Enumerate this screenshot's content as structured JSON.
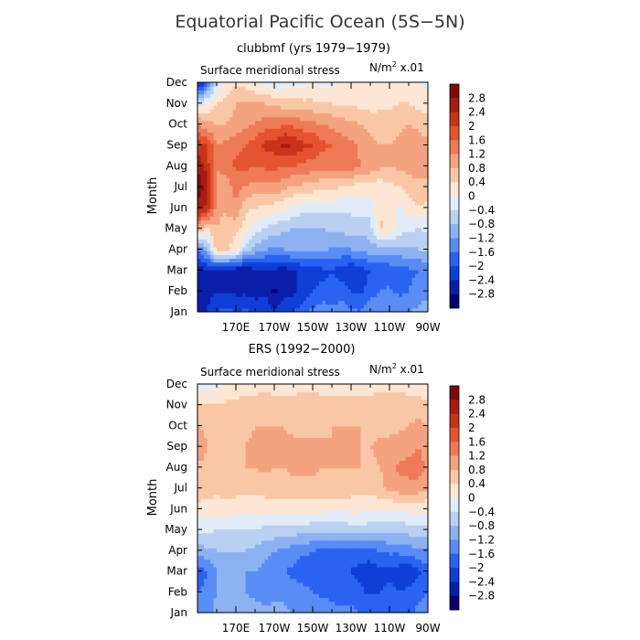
{
  "figure": {
    "title": "Equatorial Pacific Ocean (5S−5N)"
  },
  "colors": {
    "levels": [
      "#08006e",
      "#0a1fa8",
      "#0f3fd6",
      "#2a62f2",
      "#5a8cf5",
      "#8db2f2",
      "#b9d0f2",
      "#e2ecf8",
      "#fde7d4",
      "#f9c7a6",
      "#f4a37f",
      "#ef7a57",
      "#e5532f",
      "#c9331a",
      "#a51d12",
      "#7a0c0c"
    ]
  },
  "chart_data": [
    {
      "type": "heatmap",
      "subtitle": "clubbmf (yrs 1979−1979)",
      "variable_label": "Surface meridional stress",
      "units_prefix": "N/m",
      "units_sup": "2",
      "units_suffix": " x.01",
      "ylabel": "Month",
      "months": [
        "Jan",
        "Feb",
        "Mar",
        "Apr",
        "May",
        "Jun",
        "Jul",
        "Aug",
        "Sep",
        "Oct",
        "Nov",
        "Dec"
      ],
      "lon_range": [
        150,
        270
      ],
      "lon_ticks": [
        170,
        190,
        210,
        230,
        250,
        270
      ],
      "lon_tick_labels": [
        "170E",
        "170W",
        "150W",
        "130W",
        "110W",
        "90W"
      ],
      "colorbar_labels": [
        "2.8",
        "2.4",
        "2",
        "1.6",
        "1.2",
        "0.8",
        "0.4",
        "0",
        "−0.4",
        "−0.8",
        "−1.2",
        "−1.6",
        "−2",
        "−2.4",
        "−2.8"
      ],
      "levels": [
        -3.2,
        -2.8,
        -2.4,
        -2.0,
        -1.6,
        -1.2,
        -0.8,
        -0.4,
        0,
        0.4,
        0.8,
        1.2,
        1.6,
        2.0,
        2.4,
        2.8,
        3.2
      ],
      "lon": [
        150,
        155,
        160,
        165,
        170,
        175,
        180,
        185,
        190,
        195,
        200,
        205,
        210,
        215,
        220,
        225,
        230,
        235,
        240,
        245,
        250,
        255,
        260,
        265,
        270
      ],
      "values": [
        [
          -2.6,
          -2.4,
          -2.0,
          -1.9,
          -2.0,
          -1.9,
          -2.1,
          -2.0,
          -2.3,
          -2.0,
          -2.0,
          -1.7,
          -1.5,
          -1.3,
          -1.5,
          -1.3,
          -1.5,
          -1.6,
          -1.3,
          -1.2,
          -1.2,
          -1.3,
          -1.2,
          -1.1,
          -1.0
        ],
        [
          -2.8,
          -2.6,
          -2.4,
          -2.4,
          -2.5,
          -2.5,
          -2.6,
          -2.5,
          -2.9,
          -2.6,
          -2.5,
          -2.3,
          -2.0,
          -1.9,
          -1.9,
          -1.8,
          -2.0,
          -2.1,
          -1.8,
          -1.6,
          -1.5,
          -1.7,
          -1.6,
          -1.4,
          -1.3
        ],
        [
          -2.6,
          -2.5,
          -2.5,
          -2.6,
          -2.7,
          -2.7,
          -2.5,
          -2.4,
          -2.5,
          -2.6,
          -2.5,
          -2.3,
          -2.2,
          -2.1,
          -2.0,
          -2.2,
          -2.4,
          -2.2,
          -2.0,
          -1.9,
          -1.9,
          -1.8,
          -1.7,
          -1.6,
          -1.5
        ],
        [
          -1.6,
          -1.0,
          0.6,
          0.5,
          0.2,
          -0.6,
          -1.0,
          -1.2,
          -1.3,
          -1.2,
          -1.1,
          -1.2,
          -1.2,
          -1.1,
          -1.3,
          -1.3,
          -1.2,
          -1.1,
          -1.0,
          -1.0,
          -0.9,
          -0.9,
          -0.9,
          -0.8,
          -0.8
        ],
        [
          0.8,
          0.4,
          0.8,
          0.5,
          0.5,
          0.2,
          -0.2,
          -0.4,
          -0.6,
          -0.7,
          -0.8,
          -0.9,
          -0.8,
          -0.8,
          -0.7,
          -0.7,
          -0.6,
          -0.7,
          -0.6,
          0.5,
          0.3,
          -0.2,
          -0.3,
          -0.4,
          -0.3
        ],
        [
          2.7,
          2.3,
          1.0,
          0.9,
          1.2,
          0.5,
          0.4,
          0.3,
          0.2,
          0.1,
          -0.1,
          -0.2,
          -0.3,
          -0.3,
          -0.3,
          -0.3,
          -0.3,
          -0.2,
          -0.2,
          0.3,
          0.2,
          -0.1,
          0.3,
          0.4,
          0.3
        ],
        [
          3.1,
          2.6,
          1.1,
          1.0,
          1.3,
          1.2,
          1.0,
          1.0,
          1.1,
          0.9,
          0.7,
          0.7,
          0.6,
          0.5,
          0.5,
          0.4,
          0.3,
          0.2,
          0.2,
          0.1,
          0.3,
          0.4,
          0.5,
          0.6,
          0.6
        ],
        [
          2.7,
          2.2,
          1.2,
          1.4,
          1.7,
          1.7,
          1.6,
          1.7,
          1.7,
          1.6,
          1.6,
          1.5,
          1.4,
          1.3,
          1.3,
          1.4,
          1.4,
          1.2,
          1.1,
          0.9,
          0.8,
          0.9,
          1.0,
          1.1,
          1.0
        ],
        [
          2.3,
          2.0,
          1.2,
          1.3,
          1.5,
          1.6,
          1.8,
          2.1,
          2.2,
          2.5,
          2.4,
          2.1,
          2.0,
          1.7,
          1.6,
          1.4,
          1.3,
          1.1,
          0.9,
          0.8,
          0.8,
          0.9,
          1.1,
          1.0,
          0.9
        ],
        [
          1.2,
          0.9,
          0.8,
          0.8,
          0.9,
          1.1,
          1.2,
          1.4,
          1.4,
          1.6,
          1.5,
          1.4,
          1.3,
          1.2,
          1.1,
          1.0,
          0.9,
          0.8,
          0.7,
          0.6,
          0.6,
          0.7,
          0.8,
          0.7,
          0.6
        ],
        [
          -0.2,
          0.0,
          0.4,
          0.6,
          0.8,
          0.9,
          0.9,
          0.8,
          0.7,
          0.6,
          0.6,
          0.5,
          0.5,
          0.4,
          0.4,
          0.3,
          0.3,
          0.3,
          0.2,
          0.3,
          0.3,
          0.4,
          0.4,
          0.3,
          0.2
        ],
        [
          -2.8,
          -1.6,
          -0.4,
          0.1,
          0.3,
          0.2,
          0.0,
          -0.1,
          -0.3,
          -0.2,
          -0.2,
          -0.1,
          0.0,
          -0.1,
          -0.1,
          0.0,
          0.1,
          0.1,
          0.1,
          0.2,
          0.2,
          0.1,
          0.1,
          0.0,
          -0.1
        ]
      ]
    },
    {
      "type": "heatmap",
      "subtitle": "ERS (1992−2000)",
      "variable_label": "Surface meridional stress",
      "units_prefix": "N/m",
      "units_sup": "2",
      "units_suffix": " x.01",
      "ylabel": "Month",
      "months": [
        "Jan",
        "Feb",
        "Mar",
        "Apr",
        "May",
        "Jun",
        "Jul",
        "Aug",
        "Sep",
        "Oct",
        "Nov",
        "Dec"
      ],
      "lon_range": [
        150,
        270
      ],
      "lon_ticks": [
        170,
        190,
        210,
        230,
        250,
        270
      ],
      "lon_tick_labels": [
        "170E",
        "170W",
        "150W",
        "130W",
        "110W",
        "90W"
      ],
      "colorbar_labels": [
        "2.8",
        "2.4",
        "2",
        "1.6",
        "1.2",
        "0.8",
        "0.4",
        "0",
        "−0.4",
        "−0.8",
        "−1.2",
        "−1.6",
        "−2",
        "−2.4",
        "−2.8"
      ],
      "levels": [
        -3.2,
        -2.8,
        -2.4,
        -2.0,
        -1.6,
        -1.2,
        -0.8,
        -0.4,
        0,
        0.4,
        0.8,
        1.2,
        1.6,
        2.0,
        2.4,
        2.8,
        3.2
      ],
      "lon": [
        150,
        155,
        160,
        165,
        170,
        175,
        180,
        185,
        190,
        195,
        200,
        205,
        210,
        215,
        220,
        225,
        230,
        235,
        240,
        245,
        250,
        255,
        260,
        265,
        270
      ],
      "values": [
        [
          -1.3,
          -1.4,
          -1.0,
          -1.0,
          -1.1,
          -1.1,
          -1.0,
          -1.1,
          -1.0,
          -1.1,
          -1.2,
          -1.2,
          -1.3,
          -1.3,
          -1.5,
          -1.5,
          -1.5,
          -1.6,
          -1.6,
          -1.6,
          -1.6,
          -1.7,
          -1.7,
          -1.5,
          -1.4
        ],
        [
          -1.6,
          -1.5,
          -1.2,
          -1.1,
          -1.2,
          -1.2,
          -1.3,
          -1.4,
          -1.4,
          -1.3,
          -1.4,
          -1.4,
          -1.6,
          -1.7,
          -1.7,
          -1.8,
          -1.8,
          -1.9,
          -2.1,
          -2.0,
          -1.9,
          -2.0,
          -1.9,
          -1.7,
          -1.6
        ],
        [
          -1.9,
          -1.6,
          -1.2,
          -1.0,
          -1.1,
          -1.2,
          -1.2,
          -1.3,
          -1.4,
          -1.6,
          -1.7,
          -1.9,
          -1.8,
          -1.8,
          -1.9,
          -1.9,
          -2.0,
          -2.2,
          -2.3,
          -2.1,
          -2.1,
          -2.2,
          -2.3,
          -2.1,
          -1.7
        ],
        [
          -1.0,
          -0.9,
          -0.8,
          -0.8,
          -0.8,
          -0.8,
          -0.9,
          -1.1,
          -1.2,
          -1.3,
          -1.4,
          -1.5,
          -1.6,
          -1.7,
          -1.8,
          -1.8,
          -1.8,
          -1.7,
          -1.7,
          -1.6,
          -1.5,
          -1.5,
          -1.4,
          -1.3,
          -1.2
        ],
        [
          -0.3,
          -0.3,
          -0.4,
          -0.4,
          -0.4,
          -0.4,
          -0.4,
          -0.5,
          -0.5,
          -0.6,
          -0.6,
          -0.6,
          -0.7,
          -0.7,
          -0.7,
          -0.7,
          -0.6,
          -0.6,
          -0.6,
          -0.7,
          -0.7,
          -0.7,
          -0.6,
          -0.6,
          -0.6
        ],
        [
          0.3,
          0.2,
          0.2,
          0.2,
          0.1,
          0.1,
          0.1,
          0.1,
          0.2,
          0.2,
          0.2,
          0.2,
          0.2,
          0.1,
          0.1,
          0.1,
          0.1,
          0.1,
          0.0,
          0.0,
          0.0,
          0.1,
          0.1,
          0.1,
          0.1
        ],
        [
          0.6,
          0.6,
          0.5,
          0.6,
          0.6,
          0.5,
          0.6,
          0.6,
          0.6,
          0.7,
          0.6,
          0.6,
          0.7,
          0.6,
          0.7,
          0.7,
          0.6,
          0.6,
          0.6,
          0.7,
          0.9,
          1.0,
          1.1,
          1.0,
          0.8
        ],
        [
          0.7,
          0.7,
          0.7,
          0.7,
          0.7,
          0.8,
          0.8,
          0.9,
          0.8,
          0.8,
          0.9,
          0.9,
          0.9,
          0.8,
          0.8,
          0.8,
          0.8,
          0.8,
          0.7,
          0.8,
          0.9,
          1.3,
          1.3,
          1.4,
          1.1
        ],
        [
          1.1,
          0.8,
          0.8,
          0.8,
          0.7,
          0.8,
          0.9,
          0.9,
          0.9,
          0.9,
          0.9,
          0.9,
          0.9,
          0.9,
          0.8,
          0.8,
          0.8,
          0.8,
          0.8,
          0.9,
          0.9,
          1.0,
          1.1,
          1.2,
          1.0
        ],
        [
          0.8,
          0.7,
          0.7,
          0.7,
          0.7,
          0.7,
          0.8,
          0.8,
          0.8,
          0.8,
          0.7,
          0.7,
          0.7,
          0.7,
          0.8,
          0.8,
          0.8,
          0.8,
          0.7,
          0.7,
          0.7,
          0.7,
          0.8,
          0.9,
          0.8
        ],
        [
          0.4,
          0.4,
          0.4,
          0.5,
          0.5,
          0.6,
          0.6,
          0.6,
          0.6,
          0.6,
          0.6,
          0.6,
          0.6,
          0.6,
          0.6,
          0.6,
          0.6,
          0.6,
          0.6,
          0.6,
          0.6,
          0.7,
          0.6,
          0.6,
          0.5
        ],
        [
          -0.2,
          -0.2,
          -0.1,
          0.0,
          0.1,
          0.2,
          0.2,
          0.3,
          0.2,
          0.2,
          0.2,
          0.3,
          0.3,
          0.2,
          0.2,
          0.2,
          0.2,
          0.2,
          0.2,
          0.3,
          0.3,
          0.2,
          0.2,
          0.1,
          0.0
        ]
      ]
    }
  ]
}
